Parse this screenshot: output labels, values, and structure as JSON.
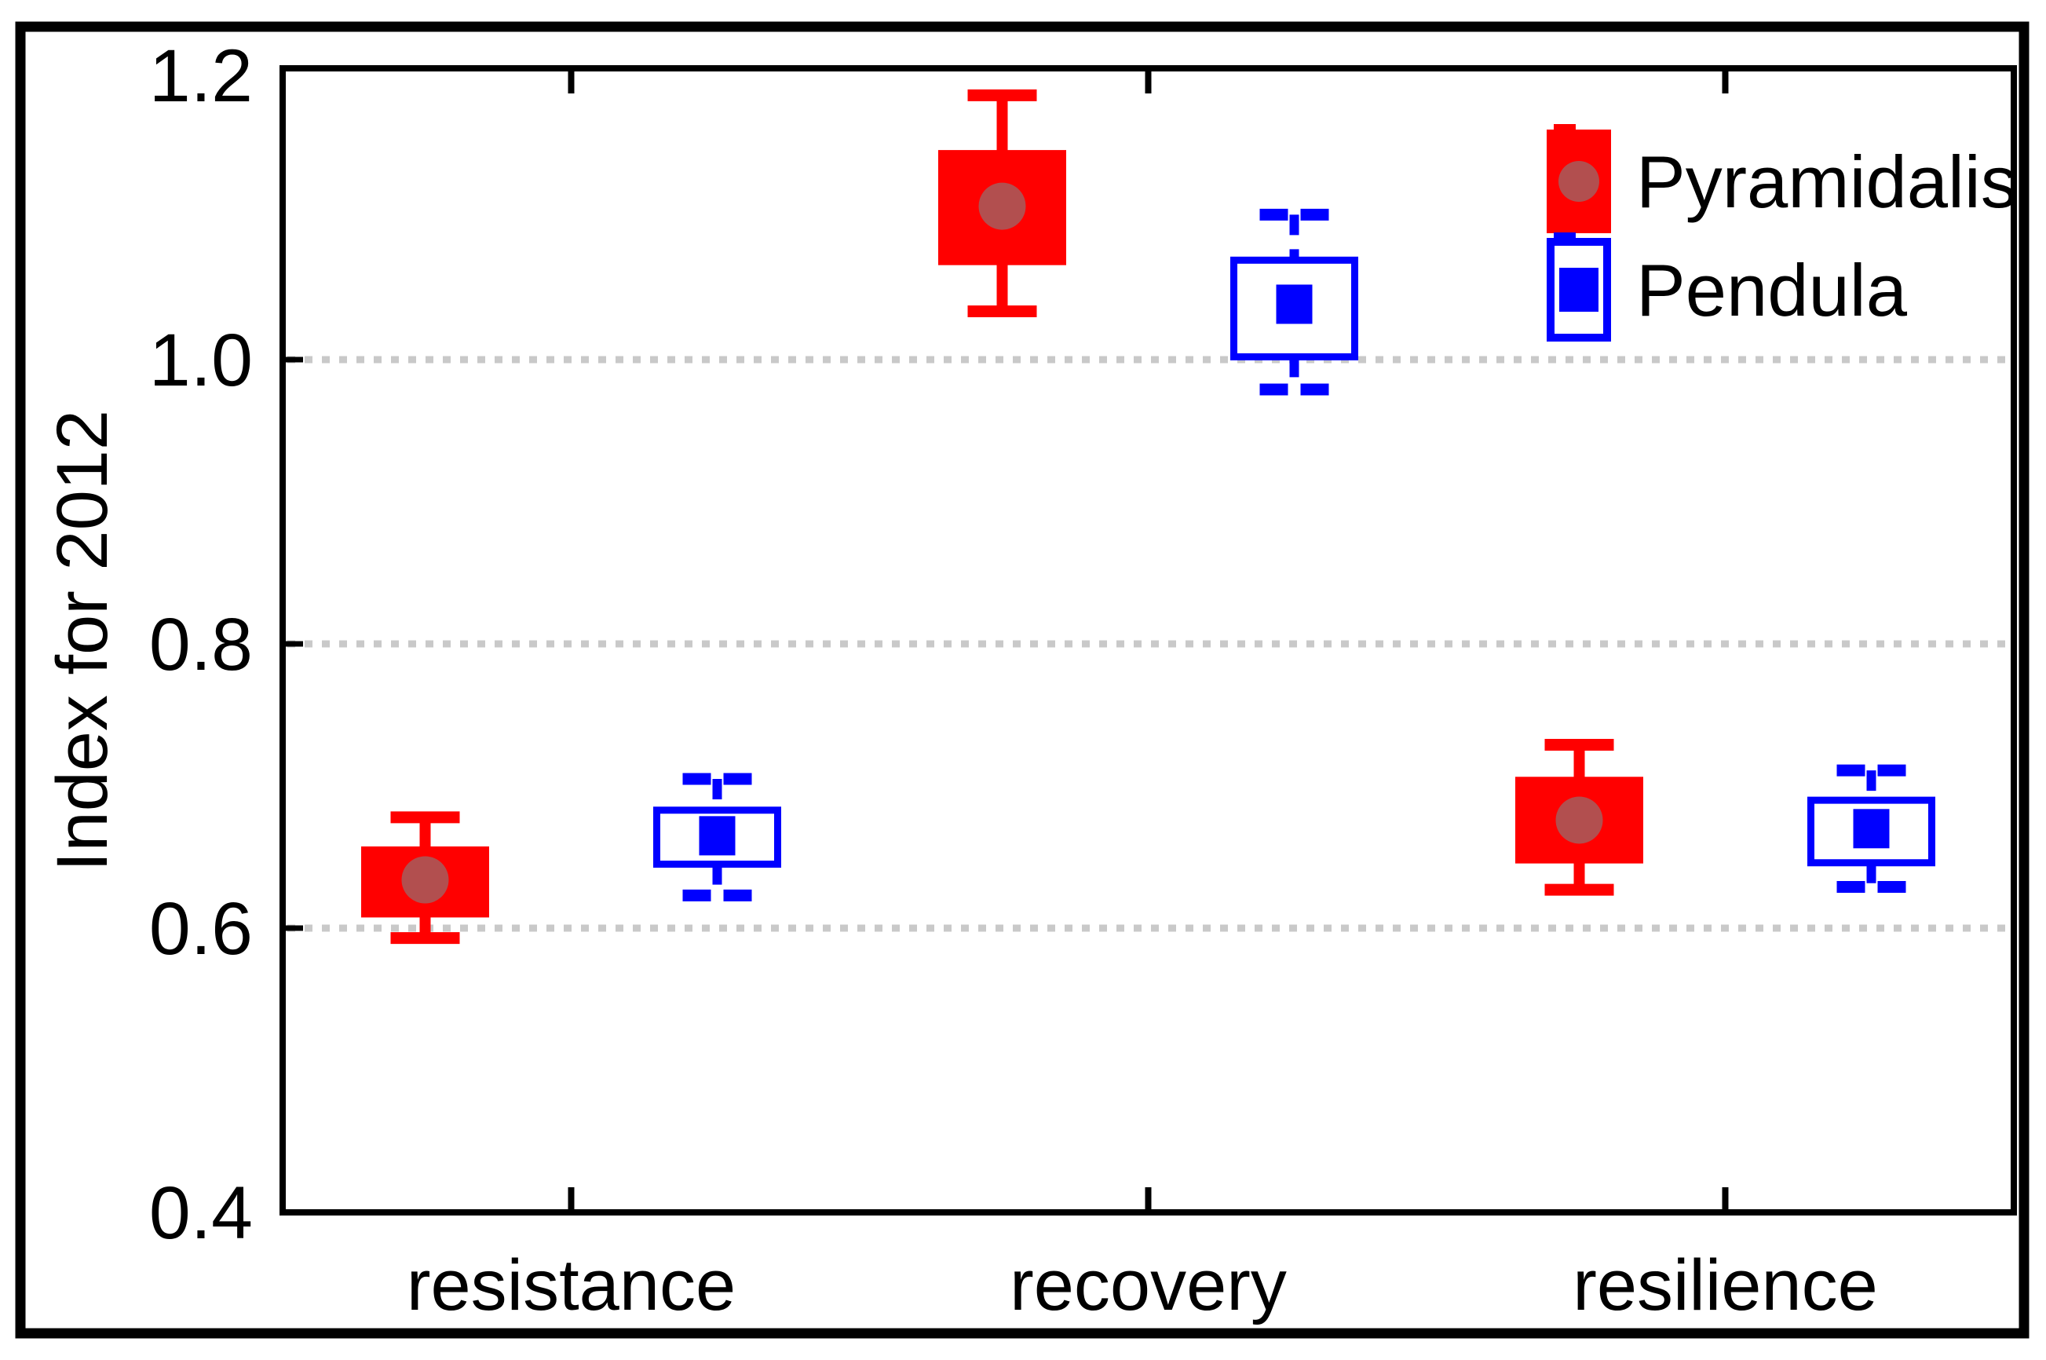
{
  "chart_data": {
    "type": "boxplot",
    "title": "",
    "xlabel": "",
    "ylabel": "Index for 2012",
    "categories": [
      "resistance",
      "recovery",
      "resilience"
    ],
    "y_axis": {
      "range": [
        0.4,
        1.205
      ],
      "ticks": [
        1.2,
        1.0,
        0.8,
        0.6,
        0.4
      ],
      "tick_labels": [
        "1.2",
        "1.0",
        "0.8",
        "0.6",
        "0.4"
      ],
      "gridline_values": [
        1.0,
        0.8,
        0.6
      ],
      "grid_style": "dotted-horizontal"
    },
    "legend": {
      "position": "top-right",
      "entries": [
        "Pyramidalis",
        "Pendula"
      ]
    },
    "series": [
      {
        "name": "Pyramidalis",
        "color": "#ff0000",
        "box_fill": "#ff0000",
        "whisker_style": "solid",
        "median_marker": "circle",
        "median_marker_color": "#b24f4f",
        "values": [
          {
            "category": "resistance",
            "whisker_low": 0.593,
            "q1": 0.61,
            "median": 0.634,
            "q3": 0.655,
            "whisker_high": 0.678
          },
          {
            "category": "recovery",
            "whisker_low": 1.034,
            "q1": 1.069,
            "median": 1.108,
            "q3": 1.145,
            "whisker_high": 1.186
          },
          {
            "category": "resilience",
            "whisker_low": 0.627,
            "q1": 0.648,
            "median": 0.676,
            "q3": 0.704,
            "whisker_high": 0.729
          }
        ]
      },
      {
        "name": "Pendula",
        "color": "#0000ff",
        "box_fill": "#ffffff",
        "whisker_style": "dashed",
        "median_marker": "square",
        "median_marker_color": "#0000ff",
        "values": [
          {
            "category": "resistance",
            "whisker_low": 0.623,
            "q1": 0.645,
            "median": 0.665,
            "q3": 0.683,
            "whisker_high": 0.705
          },
          {
            "category": "recovery",
            "whisker_low": 0.979,
            "q1": 1.002,
            "median": 1.039,
            "q3": 1.07,
            "whisker_high": 1.102
          },
          {
            "category": "resilience",
            "whisker_low": 0.629,
            "q1": 0.646,
            "median": 0.67,
            "q3": 0.69,
            "whisker_high": 0.711
          }
        ]
      }
    ],
    "colors": {
      "axis": "#000000",
      "frame": "#000000",
      "gridline": "#c9c9c9",
      "background": "#ffffff",
      "text": "#000000"
    }
  }
}
